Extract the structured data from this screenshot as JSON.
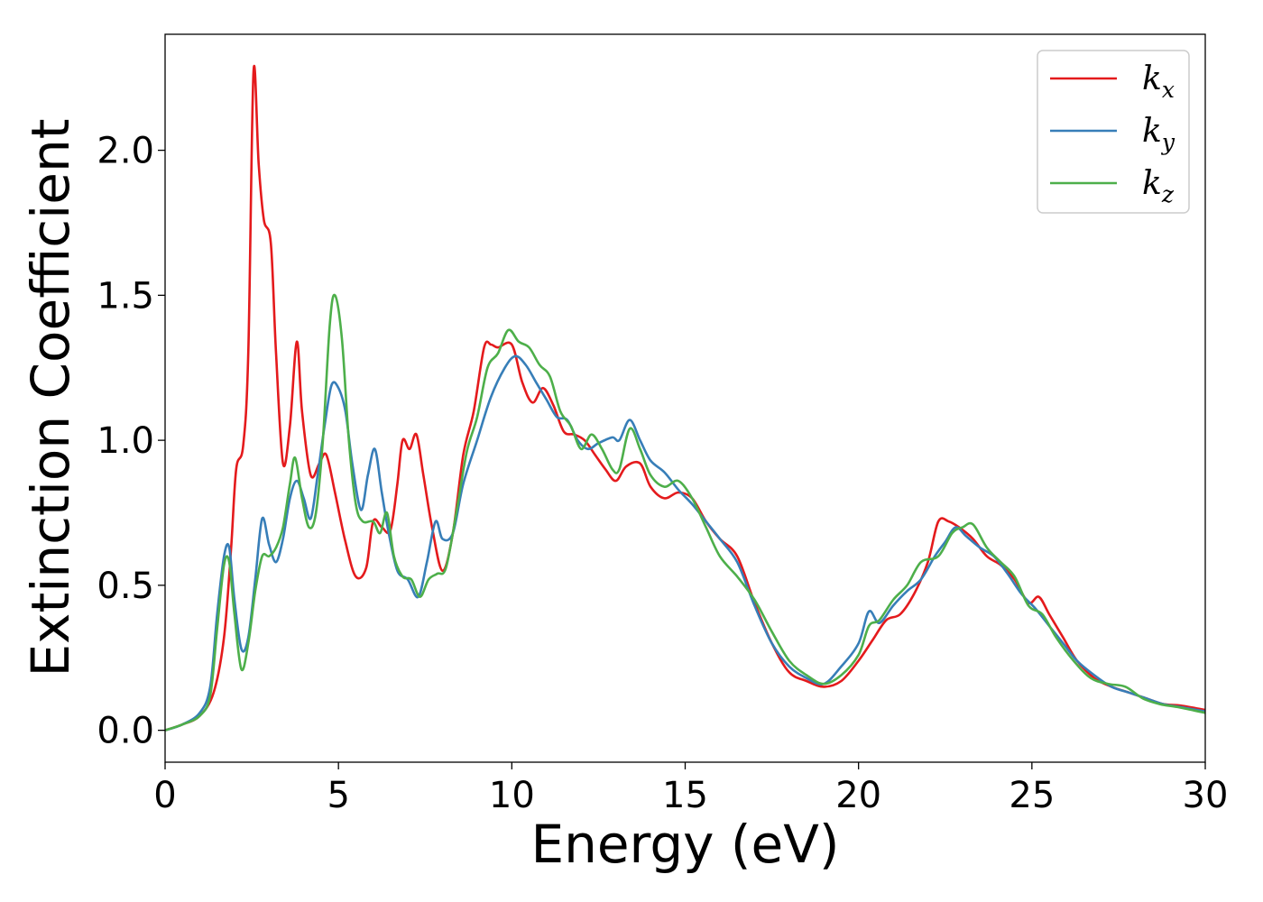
{
  "chart_data": {
    "type": "line",
    "title": "",
    "xlabel": "Energy (eV)",
    "ylabel": "Extinction Coefficient",
    "xlim": [
      0,
      30
    ],
    "ylim": [
      -0.11,
      2.4
    ],
    "xticks": [
      0,
      5,
      10,
      15,
      20,
      25,
      30
    ],
    "yticks": [
      0.0,
      0.5,
      1.0,
      1.5,
      2.0
    ],
    "xtick_labels": [
      "0",
      "5",
      "10",
      "15",
      "20",
      "25",
      "30"
    ],
    "ytick_labels": [
      "0.0",
      "0.5",
      "1.0",
      "1.5",
      "2.0"
    ],
    "grid": false,
    "legend_position": "top-right",
    "series": [
      {
        "name": "k",
        "subscript": "x",
        "color": "#e41a1c",
        "points": [
          [
            0,
            0
          ],
          [
            0.5,
            0.02
          ],
          [
            1.0,
            0.05
          ],
          [
            1.4,
            0.13
          ],
          [
            1.7,
            0.32
          ],
          [
            1.9,
            0.62
          ],
          [
            2.05,
            0.9
          ],
          [
            2.25,
            0.98
          ],
          [
            2.4,
            1.3
          ],
          [
            2.55,
            2.27
          ],
          [
            2.7,
            1.95
          ],
          [
            2.85,
            1.76
          ],
          [
            3.05,
            1.68
          ],
          [
            3.2,
            1.3
          ],
          [
            3.4,
            0.92
          ],
          [
            3.6,
            1.05
          ],
          [
            3.8,
            1.34
          ],
          [
            3.95,
            1.1
          ],
          [
            4.2,
            0.88
          ],
          [
            4.45,
            0.92
          ],
          [
            4.65,
            0.95
          ],
          [
            4.9,
            0.82
          ],
          [
            5.2,
            0.65
          ],
          [
            5.5,
            0.53
          ],
          [
            5.8,
            0.56
          ],
          [
            6.0,
            0.72
          ],
          [
            6.25,
            0.7
          ],
          [
            6.5,
            0.69
          ],
          [
            6.7,
            0.85
          ],
          [
            6.85,
            1.0
          ],
          [
            7.05,
            0.97
          ],
          [
            7.25,
            1.02
          ],
          [
            7.45,
            0.88
          ],
          [
            7.7,
            0.7
          ],
          [
            8.0,
            0.55
          ],
          [
            8.3,
            0.68
          ],
          [
            8.6,
            0.95
          ],
          [
            8.9,
            1.1
          ],
          [
            9.2,
            1.32
          ],
          [
            9.4,
            1.33
          ],
          [
            9.6,
            1.32
          ],
          [
            10.0,
            1.33
          ],
          [
            10.3,
            1.2
          ],
          [
            10.6,
            1.13
          ],
          [
            10.9,
            1.18
          ],
          [
            11.2,
            1.12
          ],
          [
            11.5,
            1.03
          ],
          [
            11.8,
            1.02
          ],
          [
            12.1,
            1.0
          ],
          [
            12.4,
            0.95
          ],
          [
            12.7,
            0.9
          ],
          [
            13.0,
            0.86
          ],
          [
            13.3,
            0.91
          ],
          [
            13.7,
            0.92
          ],
          [
            14.0,
            0.84
          ],
          [
            14.4,
            0.8
          ],
          [
            14.8,
            0.82
          ],
          [
            15.2,
            0.8
          ],
          [
            15.6,
            0.72
          ],
          [
            16.0,
            0.66
          ],
          [
            16.5,
            0.6
          ],
          [
            17.0,
            0.44
          ],
          [
            17.5,
            0.3
          ],
          [
            18.0,
            0.2
          ],
          [
            18.5,
            0.17
          ],
          [
            19.0,
            0.15
          ],
          [
            19.5,
            0.17
          ],
          [
            20.0,
            0.24
          ],
          [
            20.4,
            0.31
          ],
          [
            20.8,
            0.38
          ],
          [
            21.2,
            0.4
          ],
          [
            21.6,
            0.47
          ],
          [
            22.0,
            0.58
          ],
          [
            22.3,
            0.72
          ],
          [
            22.6,
            0.72
          ],
          [
            22.9,
            0.7
          ],
          [
            23.3,
            0.66
          ],
          [
            23.7,
            0.6
          ],
          [
            24.1,
            0.57
          ],
          [
            24.5,
            0.52
          ],
          [
            24.9,
            0.44
          ],
          [
            25.2,
            0.46
          ],
          [
            25.5,
            0.4
          ],
          [
            25.9,
            0.32
          ],
          [
            26.3,
            0.24
          ],
          [
            26.8,
            0.18
          ],
          [
            27.3,
            0.15
          ],
          [
            27.8,
            0.13
          ],
          [
            28.3,
            0.11
          ],
          [
            28.8,
            0.09
          ],
          [
            29.3,
            0.085
          ],
          [
            30.0,
            0.07
          ]
        ]
      },
      {
        "name": "k",
        "subscript": "y",
        "color": "#377eb8",
        "points": [
          [
            0,
            0
          ],
          [
            0.5,
            0.02
          ],
          [
            1.0,
            0.06
          ],
          [
            1.3,
            0.15
          ],
          [
            1.5,
            0.4
          ],
          [
            1.7,
            0.6
          ],
          [
            1.85,
            0.63
          ],
          [
            2.0,
            0.45
          ],
          [
            2.2,
            0.28
          ],
          [
            2.4,
            0.32
          ],
          [
            2.6,
            0.52
          ],
          [
            2.8,
            0.73
          ],
          [
            3.0,
            0.64
          ],
          [
            3.2,
            0.58
          ],
          [
            3.4,
            0.66
          ],
          [
            3.6,
            0.8
          ],
          [
            3.8,
            0.86
          ],
          [
            4.0,
            0.8
          ],
          [
            4.2,
            0.73
          ],
          [
            4.4,
            0.88
          ],
          [
            4.6,
            1.05
          ],
          [
            4.8,
            1.19
          ],
          [
            5.0,
            1.18
          ],
          [
            5.2,
            1.1
          ],
          [
            5.4,
            0.92
          ],
          [
            5.65,
            0.76
          ],
          [
            5.85,
            0.88
          ],
          [
            6.05,
            0.97
          ],
          [
            6.25,
            0.82
          ],
          [
            6.45,
            0.68
          ],
          [
            6.7,
            0.55
          ],
          [
            7.0,
            0.52
          ],
          [
            7.3,
            0.46
          ],
          [
            7.55,
            0.58
          ],
          [
            7.8,
            0.72
          ],
          [
            8.0,
            0.66
          ],
          [
            8.3,
            0.68
          ],
          [
            8.6,
            0.85
          ],
          [
            9.0,
            1.0
          ],
          [
            9.4,
            1.15
          ],
          [
            9.8,
            1.25
          ],
          [
            10.1,
            1.29
          ],
          [
            10.4,
            1.26
          ],
          [
            10.7,
            1.2
          ],
          [
            11.0,
            1.14
          ],
          [
            11.3,
            1.08
          ],
          [
            11.6,
            1.07
          ],
          [
            11.9,
            1.0
          ],
          [
            12.2,
            0.97
          ],
          [
            12.5,
            0.99
          ],
          [
            12.9,
            1.01
          ],
          [
            13.1,
            1.0
          ],
          [
            13.4,
            1.07
          ],
          [
            13.7,
            1.0
          ],
          [
            14.0,
            0.93
          ],
          [
            14.4,
            0.89
          ],
          [
            14.8,
            0.83
          ],
          [
            15.2,
            0.78
          ],
          [
            15.6,
            0.72
          ],
          [
            16.0,
            0.66
          ],
          [
            16.5,
            0.58
          ],
          [
            17.0,
            0.43
          ],
          [
            17.5,
            0.3
          ],
          [
            18.0,
            0.22
          ],
          [
            18.5,
            0.18
          ],
          [
            19.0,
            0.16
          ],
          [
            19.5,
            0.22
          ],
          [
            20.0,
            0.3
          ],
          [
            20.3,
            0.41
          ],
          [
            20.6,
            0.37
          ],
          [
            21.0,
            0.43
          ],
          [
            21.4,
            0.48
          ],
          [
            21.8,
            0.52
          ],
          [
            22.2,
            0.6
          ],
          [
            22.5,
            0.65
          ],
          [
            22.8,
            0.7
          ],
          [
            23.1,
            0.67
          ],
          [
            23.5,
            0.63
          ],
          [
            23.9,
            0.6
          ],
          [
            24.3,
            0.54
          ],
          [
            24.7,
            0.47
          ],
          [
            25.1,
            0.42
          ],
          [
            25.5,
            0.36
          ],
          [
            25.9,
            0.3
          ],
          [
            26.3,
            0.24
          ],
          [
            26.8,
            0.19
          ],
          [
            27.3,
            0.15
          ],
          [
            27.8,
            0.13
          ],
          [
            28.3,
            0.11
          ],
          [
            28.8,
            0.09
          ],
          [
            29.3,
            0.08
          ],
          [
            30.0,
            0.065
          ]
        ]
      },
      {
        "name": "k",
        "subscript": "z",
        "color": "#4daf4a",
        "points": [
          [
            0,
            0
          ],
          [
            0.5,
            0.02
          ],
          [
            1.0,
            0.05
          ],
          [
            1.3,
            0.12
          ],
          [
            1.5,
            0.35
          ],
          [
            1.7,
            0.57
          ],
          [
            1.85,
            0.58
          ],
          [
            2.0,
            0.4
          ],
          [
            2.2,
            0.21
          ],
          [
            2.4,
            0.3
          ],
          [
            2.6,
            0.48
          ],
          [
            2.8,
            0.6
          ],
          [
            3.0,
            0.6
          ],
          [
            3.2,
            0.63
          ],
          [
            3.4,
            0.7
          ],
          [
            3.6,
            0.85
          ],
          [
            3.75,
            0.94
          ],
          [
            3.95,
            0.8
          ],
          [
            4.15,
            0.7
          ],
          [
            4.35,
            0.75
          ],
          [
            4.55,
            1.0
          ],
          [
            4.75,
            1.4
          ],
          [
            4.9,
            1.5
          ],
          [
            5.1,
            1.35
          ],
          [
            5.3,
            1.0
          ],
          [
            5.5,
            0.78
          ],
          [
            5.7,
            0.72
          ],
          [
            6.0,
            0.72
          ],
          [
            6.2,
            0.68
          ],
          [
            6.4,
            0.75
          ],
          [
            6.6,
            0.6
          ],
          [
            6.85,
            0.53
          ],
          [
            7.1,
            0.52
          ],
          [
            7.35,
            0.46
          ],
          [
            7.6,
            0.52
          ],
          [
            7.85,
            0.54
          ],
          [
            8.1,
            0.56
          ],
          [
            8.4,
            0.75
          ],
          [
            8.7,
            0.96
          ],
          [
            9.0,
            1.08
          ],
          [
            9.3,
            1.25
          ],
          [
            9.6,
            1.3
          ],
          [
            9.9,
            1.38
          ],
          [
            10.2,
            1.34
          ],
          [
            10.5,
            1.32
          ],
          [
            10.8,
            1.26
          ],
          [
            11.1,
            1.22
          ],
          [
            11.4,
            1.1
          ],
          [
            11.7,
            1.05
          ],
          [
            12.0,
            0.97
          ],
          [
            12.3,
            1.02
          ],
          [
            12.6,
            0.97
          ],
          [
            12.9,
            0.9
          ],
          [
            13.1,
            0.9
          ],
          [
            13.4,
            1.04
          ],
          [
            13.7,
            0.97
          ],
          [
            14.0,
            0.88
          ],
          [
            14.4,
            0.84
          ],
          [
            14.8,
            0.86
          ],
          [
            15.2,
            0.8
          ],
          [
            15.6,
            0.7
          ],
          [
            16.0,
            0.6
          ],
          [
            16.5,
            0.53
          ],
          [
            17.0,
            0.45
          ],
          [
            17.5,
            0.34
          ],
          [
            18.0,
            0.24
          ],
          [
            18.5,
            0.19
          ],
          [
            19.0,
            0.16
          ],
          [
            19.5,
            0.19
          ],
          [
            20.0,
            0.26
          ],
          [
            20.3,
            0.36
          ],
          [
            20.6,
            0.38
          ],
          [
            21.0,
            0.45
          ],
          [
            21.4,
            0.5
          ],
          [
            21.8,
            0.58
          ],
          [
            22.3,
            0.6
          ],
          [
            22.7,
            0.68
          ],
          [
            23.0,
            0.7
          ],
          [
            23.3,
            0.71
          ],
          [
            23.7,
            0.63
          ],
          [
            24.1,
            0.58
          ],
          [
            24.5,
            0.53
          ],
          [
            24.9,
            0.43
          ],
          [
            25.3,
            0.4
          ],
          [
            25.7,
            0.32
          ],
          [
            26.2,
            0.24
          ],
          [
            26.7,
            0.18
          ],
          [
            27.2,
            0.16
          ],
          [
            27.7,
            0.15
          ],
          [
            28.2,
            0.11
          ],
          [
            28.7,
            0.09
          ],
          [
            29.2,
            0.08
          ],
          [
            30.0,
            0.06
          ]
        ]
      }
    ]
  }
}
